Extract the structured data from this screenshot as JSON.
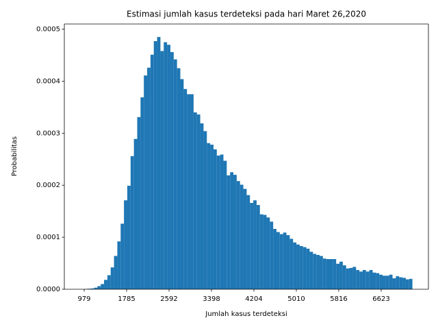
{
  "chart_data": {
    "type": "histogram",
    "title": "Estimasi jumlah kasus terdeteksi pada hari Maret 26,2020",
    "xlabel": "Jumlah kasus terdeteksi",
    "ylabel": "Probabilitas",
    "color": "#1f77b4",
    "bins": [
      916,
      979,
      1042,
      1105,
      1168,
      1231,
      1294,
      1357,
      1420,
      1483,
      1546,
      1609,
      1672,
      1735,
      1798,
      1861,
      1924,
      1987,
      2050,
      2113,
      2176,
      2239,
      2302,
      2365,
      2428,
      2491,
      2554,
      2617,
      2680,
      2743,
      2806,
      2869,
      2932,
      2995,
      3058,
      3121,
      3184,
      3247,
      3310,
      3373,
      3436,
      3499,
      3562,
      3625,
      3688,
      3751,
      3814,
      3877,
      3940,
      4003,
      4066,
      4129,
      4192,
      4255,
      4318,
      4381,
      4444,
      4507,
      4570,
      4633,
      4696,
      4759,
      4822,
      4885,
      4948,
      5011,
      5074,
      5137,
      5200,
      5263,
      5326,
      5389,
      5452,
      5515,
      5578,
      5641,
      5704,
      5767,
      5830,
      5893,
      5956,
      6019,
      6082,
      6145,
      6208,
      6271,
      6334,
      6397,
      6460,
      6523,
      6586,
      6649,
      6712,
      6775,
      6838,
      6901,
      6964,
      7027,
      7090,
      7153,
      7216
    ],
    "values": [
      0.0,
      5e-07,
      1e-06,
      1.5e-06,
      3e-06,
      6e-06,
      1e-05,
      1.8e-05,
      2.7e-05,
      4.2e-05,
      6.4e-05,
      9.2e-05,
      0.000126,
      0.000171,
      0.000199,
      0.000256,
      0.000289,
      0.000331,
      0.000369,
      0.000411,
      0.000426,
      0.000451,
      0.000477,
      0.000485,
      0.000458,
      0.000475,
      0.00047,
      0.000456,
      0.000442,
      0.000425,
      0.000404,
      0.000385,
      0.000375,
      0.000375,
      0.00034,
      0.000336,
      0.000319,
      0.000304,
      0.000281,
      0.000278,
      0.000269,
      0.000257,
      0.000259,
      0.000247,
      0.000219,
      0.000225,
      0.00022,
      0.000208,
      0.000201,
      0.000193,
      0.000181,
      0.000166,
      0.000171,
      0.000162,
      0.000144,
      0.000143,
      0.000138,
      0.00013,
      0.000116,
      0.00011,
      0.000106,
      0.000109,
      0.000104,
      9.7e-05,
      9e-05,
      8.6e-05,
      8.3e-05,
      8.1e-05,
      7.8e-05,
      7.2e-05,
      6.8e-05,
      6.6e-05,
      6.4e-05,
      5.9e-05,
      5.8e-05,
      5.8e-05,
      5.8e-05,
      4.9e-05,
      5.3e-05,
      4.6e-05,
      4e-05,
      4.1e-05,
      4.3e-05,
      3.7e-05,
      3.4e-05,
      3.7e-05,
      3.4e-05,
      3.7e-05,
      3.2e-05,
      3.1e-05,
      2.8e-05,
      2.6e-05,
      2.6e-05,
      2.8e-05,
      2.1e-05,
      2.5e-05,
      2.3e-05,
      2.2e-05,
      1.9e-05,
      2e-05
    ],
    "xlim": [
      602,
      7520
    ],
    "xticks": [
      979,
      1785,
      2592,
      3398,
      4204,
      5010,
      5816,
      6623
    ],
    "ylim": [
      0,
      0.00051
    ],
    "yticks": [
      {
        "value": 0,
        "label": "0.0000"
      },
      {
        "value": 0.0001,
        "label": "0.0001"
      },
      {
        "value": 0.0002,
        "label": "0.0002"
      },
      {
        "value": 0.0003,
        "label": "0.0003"
      },
      {
        "value": 0.0004,
        "label": "0.0004"
      },
      {
        "value": 0.0005,
        "label": "0.0005"
      }
    ]
  }
}
